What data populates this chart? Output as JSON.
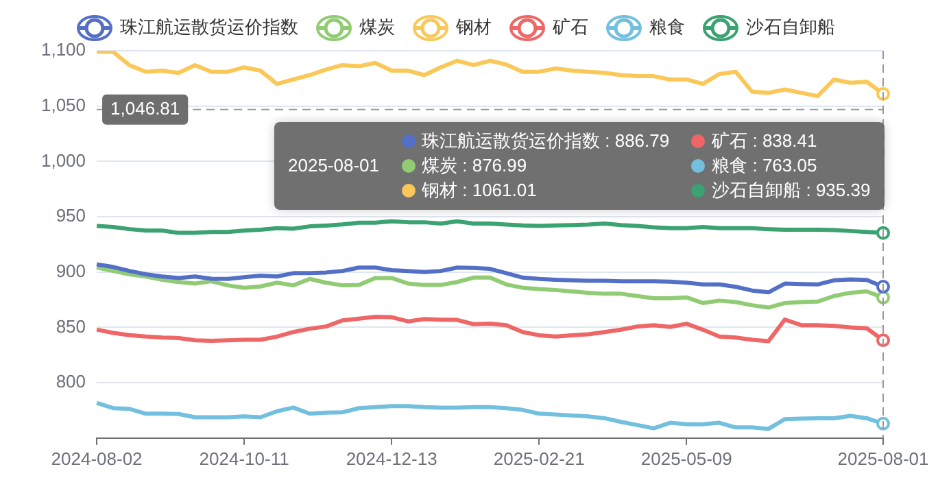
{
  "chart_data": {
    "type": "line",
    "categories": [
      "2024-08-02",
      null,
      null,
      null,
      null,
      null,
      null,
      null,
      null,
      "2024-10-11",
      null,
      null,
      null,
      null,
      null,
      null,
      null,
      null,
      "2024-12-13",
      null,
      null,
      null,
      null,
      null,
      null,
      null,
      null,
      "2025-02-21",
      null,
      null,
      null,
      null,
      null,
      null,
      null,
      null,
      "2025-05-09",
      null,
      null,
      null,
      null,
      null,
      null,
      null,
      null,
      null,
      null,
      null,
      "2025-08-01"
    ],
    "series": [
      {
        "name": "珠江航运散货运价指数",
        "color": "#5470c6",
        "values": [
          907,
          904.6,
          901,
          898,
          896,
          894.6,
          896,
          894,
          893.8,
          895.4,
          896.7,
          896,
          899,
          899,
          899.6,
          901,
          904,
          904,
          901.7,
          901,
          900,
          901,
          904,
          903.7,
          902.9,
          899,
          895,
          893.8,
          893,
          892.5,
          892.1,
          892.1,
          891.7,
          891.7,
          891.7,
          891.3,
          890.4,
          888.8,
          888.8,
          886.7,
          883.3,
          881.7,
          889.6,
          889.2,
          888.8,
          892.5,
          893.3,
          892.9,
          886.79
        ]
      },
      {
        "name": "煤炭",
        "color": "#91cc75",
        "values": [
          904.2,
          901,
          898,
          896,
          893,
          891,
          889.6,
          891.7,
          888,
          885.8,
          887,
          890.4,
          888,
          893.8,
          890.4,
          888,
          888.3,
          894.6,
          894.6,
          889.6,
          888.3,
          888.3,
          891,
          895,
          895,
          888.8,
          885.8,
          884.6,
          883.8,
          882.5,
          881.3,
          880.4,
          880.4,
          878.3,
          876.3,
          876.3,
          877.1,
          872,
          874.2,
          872.9,
          870,
          867.9,
          872,
          872.9,
          873.3,
          878.3,
          881.3,
          882.5,
          876.99
        ]
      },
      {
        "name": "钢材",
        "color": "#fac858",
        "values": [
          1099,
          1099,
          1087,
          1081,
          1082,
          1080,
          1087,
          1081,
          1081,
          1085,
          1082,
          1070,
          1074,
          1078,
          1083,
          1087,
          1086,
          1089,
          1082,
          1082,
          1078,
          1085,
          1091,
          1087,
          1091,
          1087.5,
          1081,
          1081,
          1084,
          1082,
          1081,
          1080,
          1078,
          1077,
          1077,
          1074,
          1074,
          1070,
          1079,
          1081,
          1063,
          1062,
          1065,
          1062,
          1059,
          1074,
          1071,
          1072,
          1061.01
        ]
      },
      {
        "name": "矿石",
        "color": "#ee6666",
        "values": [
          848,
          845,
          843,
          841.7,
          840.8,
          840.4,
          838.3,
          837.9,
          838.3,
          838.8,
          838.8,
          841.7,
          845.8,
          848.8,
          850.8,
          856.3,
          857.9,
          859.6,
          859.2,
          855.4,
          857.5,
          857,
          856.7,
          852.9,
          853.3,
          852,
          845.8,
          842.9,
          841.7,
          842.9,
          843.8,
          845.8,
          847.9,
          850.8,
          852,
          850.4,
          853.3,
          847.9,
          841.7,
          840.8,
          838.8,
          837.5,
          857.1,
          852,
          852,
          851.3,
          850,
          849.2,
          838.41
        ]
      },
      {
        "name": "粮食",
        "color": "#73c0de",
        "values": [
          781.7,
          777,
          776.3,
          772,
          772,
          771.7,
          768.8,
          768.8,
          768.8,
          769.6,
          768.8,
          774.2,
          777.5,
          772,
          772.9,
          773.3,
          777,
          777.9,
          778.8,
          778.8,
          777.9,
          777.5,
          777.5,
          777.9,
          777.9,
          777,
          775.4,
          772,
          771.3,
          770.4,
          769.6,
          767.9,
          764.6,
          761.7,
          758.8,
          763.8,
          762.5,
          762.5,
          763.8,
          759.6,
          759.6,
          758.3,
          767.1,
          767.5,
          767.9,
          767.9,
          770,
          767.9,
          763.05
        ]
      },
      {
        "name": "沙石自卸船",
        "color": "#3ba272",
        "values": [
          941.7,
          940.8,
          938.8,
          937.5,
          937.5,
          935.4,
          935.4,
          936.3,
          936.3,
          937.5,
          938.3,
          939.6,
          939.2,
          941.3,
          942,
          943,
          944.6,
          944.6,
          945.8,
          945,
          945,
          943.8,
          945.8,
          943.8,
          943.8,
          942.9,
          942.1,
          941.7,
          942.1,
          942.5,
          942.9,
          943.8,
          942.5,
          941.7,
          940.4,
          939.6,
          939.6,
          940.8,
          939.6,
          939.6,
          939.6,
          938.8,
          938.3,
          938.3,
          938.3,
          937.9,
          937.1,
          936.3,
          935.39
        ]
      }
    ],
    "ylim": [
      750,
      1100
    ],
    "yticks": [
      800,
      850,
      900,
      950,
      {
        "value": 1000,
        "label": "1,000"
      },
      {
        "value": 1050,
        "label": "1,050"
      },
      {
        "value": 1100,
        "label": "1,100"
      }
    ],
    "grid": "y",
    "legend": "top",
    "marker": "none",
    "line_style": "solid",
    "ref_lines": [
      {
        "axis": "y",
        "value": 1046.81,
        "label": "1,046.81"
      },
      {
        "axis": "x",
        "value": "2025-08-01",
        "label": null
      }
    ],
    "annotations": [
      "2025-08-01",
      "珠江航运散货运价指数 : 886.79",
      "煤炭 : 876.99",
      "钢材 : 1061.01",
      "矿石 : 838.41",
      "粮食 : 763.05",
      "沙石自卸船 : 935.39"
    ]
  }
}
